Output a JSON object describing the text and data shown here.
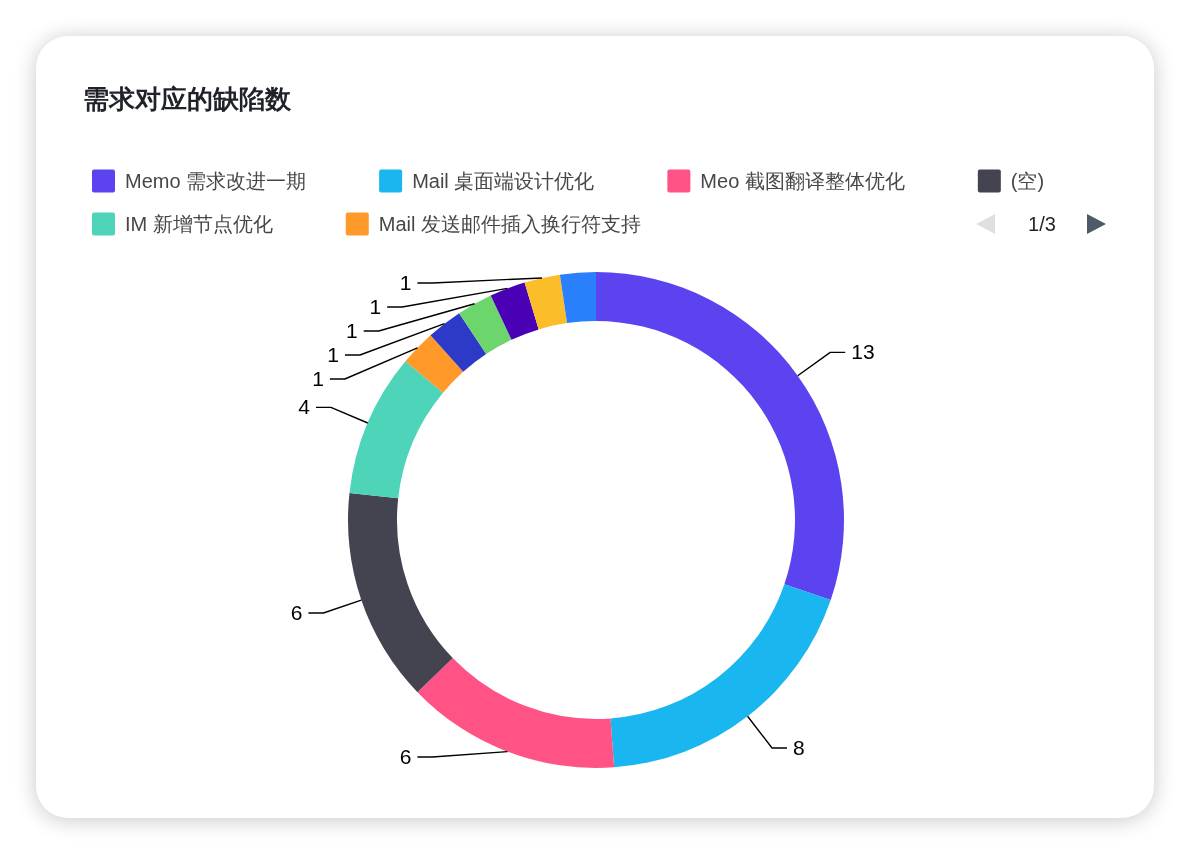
{
  "chart_data": {
    "type": "donut",
    "title": "需求对应的缺陷数",
    "categories": [
      "Memo 需求改进一期",
      "Mail 桌面端设计优化",
      "Meo 截图翻译整体优化",
      "(空)",
      "IM 新增节点优化",
      "Mail 发送邮件插入换行符支持",
      null,
      null,
      null,
      null,
      null
    ],
    "values": [
      13,
      8,
      6,
      6,
      4,
      1,
      1,
      1,
      1,
      1,
      1
    ],
    "colors": [
      "#5b44f0",
      "#1ab6f0",
      "#ff5285",
      "#434450",
      "#4dd4b9",
      "#ff9a2a",
      "#2d3ac7",
      "#6cd66c",
      "#4a00b4",
      "#fbbd2a",
      "#2a80fa"
    ],
    "value_labels": [
      "13",
      "8",
      "6",
      "6",
      "4",
      "1",
      "1",
      "1",
      "1",
      "1",
      null
    ],
    "legend": "top",
    "annotations": [
      "1/3"
    ]
  }
}
